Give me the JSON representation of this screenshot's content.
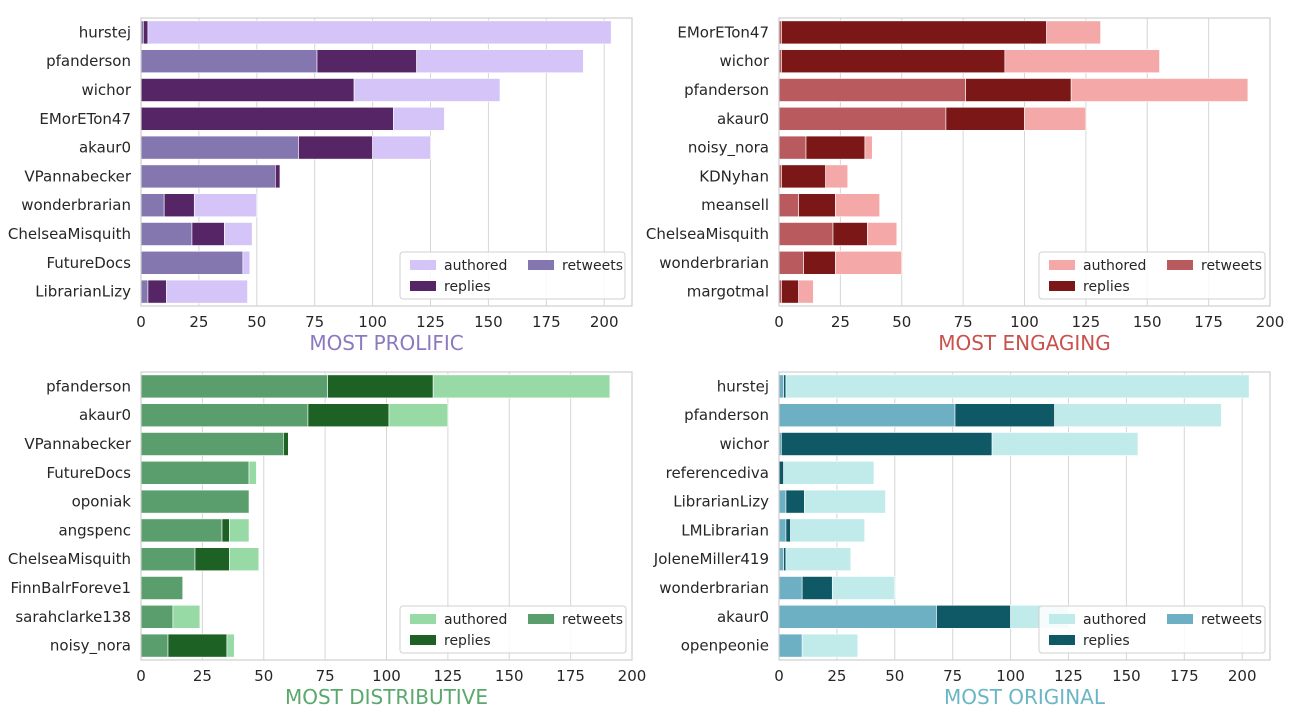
{
  "chart_data": [
    {
      "type": "bar",
      "orientation": "horizontal",
      "stacked": true,
      "title": "MOST PROLIFIC",
      "title_color": "#8c79c0",
      "xlim": [
        0,
        212
      ],
      "xticks": [
        0,
        25,
        50,
        75,
        100,
        125,
        150,
        175,
        200
      ],
      "grid": "vertical",
      "legend_placement": "lower-right",
      "legend": [
        {
          "label": "authored",
          "color": "#d4c4f8"
        },
        {
          "label": "retweets",
          "color": "#8477b0"
        },
        {
          "label": "replies",
          "color": "#552565"
        }
      ],
      "categories": [
        "hurstej",
        "pfanderson",
        "wichor",
        "EMorETon47",
        "akaur0",
        "VPannabecker",
        "wonderbrarian",
        "ChelseaMisquith",
        "FutureDocs",
        "LibrarianLizy"
      ],
      "series": [
        {
          "name": "retweets",
          "color": "#8477b0",
          "values": [
            1,
            76,
            0,
            0,
            68,
            58,
            10,
            22,
            44,
            3
          ]
        },
        {
          "name": "replies",
          "color": "#552565",
          "values": [
            2,
            43,
            92,
            109,
            32,
            2,
            13,
            14,
            0,
            8
          ]
        },
        {
          "name": "authored",
          "color": "#d4c4f8",
          "values": [
            200,
            72,
            63,
            22,
            25,
            0,
            27,
            12,
            3,
            35
          ]
        }
      ]
    },
    {
      "type": "bar",
      "orientation": "horizontal",
      "stacked": true,
      "title": "MOST ENGAGING",
      "title_color": "#c8524e",
      "xlim": [
        0,
        200
      ],
      "xticks": [
        0,
        25,
        50,
        75,
        100,
        125,
        150,
        175,
        200
      ],
      "grid": "vertical",
      "legend_placement": "lower-right",
      "legend": [
        {
          "label": "authored",
          "color": "#f4a9a8"
        },
        {
          "label": "retweets",
          "color": "#b85a5e"
        },
        {
          "label": "replies",
          "color": "#7b1716"
        }
      ],
      "categories": [
        "EMorETon47",
        "wichor",
        "pfanderson",
        "akaur0",
        "noisy_nora",
        "KDNyhan",
        "meansell",
        "ChelseaMisquith",
        "wonderbrarian",
        "margotmal"
      ],
      "series": [
        {
          "name": "retweets",
          "color": "#b85a5e",
          "values": [
            1,
            1,
            76,
            68,
            11,
            1,
            8,
            22,
            10,
            1
          ]
        },
        {
          "name": "replies",
          "color": "#7b1716",
          "values": [
            108,
            91,
            43,
            32,
            24,
            18,
            15,
            14,
            13,
            7
          ]
        },
        {
          "name": "authored",
          "color": "#f4a9a8",
          "values": [
            22,
            63,
            72,
            25,
            3,
            9,
            18,
            12,
            27,
            6
          ]
        }
      ]
    },
    {
      "type": "bar",
      "orientation": "horizontal",
      "stacked": true,
      "title": "MOST DISTRIBUTIVE",
      "title_color": "#5aa86c",
      "xlim": [
        0,
        200
      ],
      "xticks": [
        0,
        25,
        50,
        75,
        100,
        125,
        150,
        175,
        200
      ],
      "grid": "vertical",
      "legend_placement": "lower-right",
      "legend": [
        {
          "label": "authored",
          "color": "#98daa6"
        },
        {
          "label": "retweets",
          "color": "#5b9e6d"
        },
        {
          "label": "replies",
          "color": "#1d6224"
        }
      ],
      "categories": [
        "pfanderson",
        "akaur0",
        "VPannabecker",
        "FutureDocs",
        "oponiak",
        "angspenc",
        "ChelseaMisquith",
        "FinnBalrForeve1",
        "sarahclarke138",
        "noisy_nora"
      ],
      "series": [
        {
          "name": "retweets",
          "color": "#5b9e6d",
          "values": [
            76,
            68,
            58,
            44,
            44,
            33,
            22,
            17,
            13,
            11
          ]
        },
        {
          "name": "replies",
          "color": "#1d6224",
          "values": [
            43,
            33,
            2,
            0,
            0,
            3,
            14,
            0,
            0,
            24
          ]
        },
        {
          "name": "authored",
          "color": "#98daa6",
          "values": [
            72,
            24,
            0,
            3,
            0,
            8,
            12,
            0,
            11,
            3
          ]
        }
      ]
    },
    {
      "type": "bar",
      "orientation": "horizontal",
      "stacked": true,
      "title": "MOST ORIGINAL",
      "title_color": "#6bb6c6",
      "xlim": [
        0,
        212
      ],
      "xticks": [
        0,
        25,
        50,
        75,
        100,
        125,
        150,
        175,
        200
      ],
      "grid": "vertical",
      "legend_placement": "lower-right",
      "legend": [
        {
          "label": "authored",
          "color": "#c1ebea"
        },
        {
          "label": "retweets",
          "color": "#6dafc3"
        },
        {
          "label": "replies",
          "color": "#0f5866"
        }
      ],
      "categories": [
        "hurstej",
        "pfanderson",
        "wichor",
        "referencediva",
        "LibrarianLizy",
        "LMLibrarian",
        "JoleneMiller419",
        "wonderbrarian",
        "akaur0",
        "openpeonie"
      ],
      "series": [
        {
          "name": "retweets",
          "color": "#6dafc3",
          "values": [
            2,
            76,
            1,
            0,
            3,
            3,
            2,
            10,
            68,
            10
          ]
        },
        {
          "name": "replies",
          "color": "#0f5866",
          "values": [
            1,
            43,
            91,
            2,
            8,
            2,
            1,
            13,
            32,
            0
          ]
        },
        {
          "name": "authored",
          "color": "#c1ebea",
          "values": [
            200,
            72,
            63,
            39,
            35,
            32,
            28,
            27,
            25,
            24
          ]
        }
      ]
    }
  ]
}
